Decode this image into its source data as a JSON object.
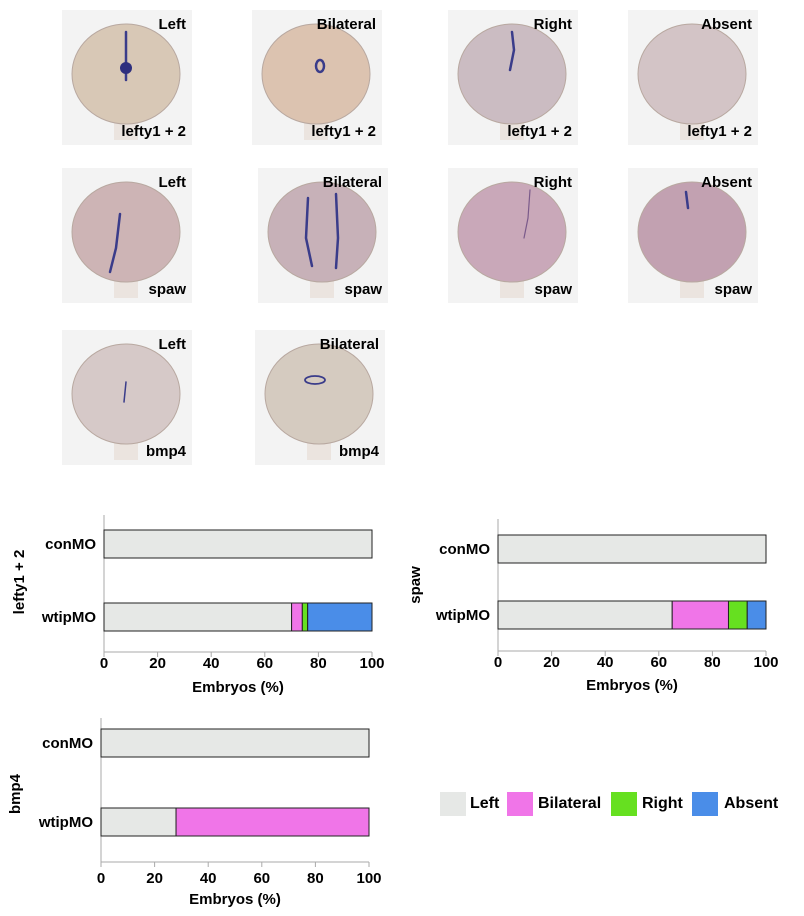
{
  "panels": [
    {
      "label": "Left",
      "marker": "lefty1 + 2",
      "stain": "center"
    },
    {
      "label": "Bilateral",
      "marker": "lefty1 + 2",
      "stain": "small"
    },
    {
      "label": "Right",
      "marker": "lefty1 + 2",
      "stain": "right"
    },
    {
      "label": "Absent",
      "marker": "lefty1 + 2",
      "stain": "none"
    },
    {
      "label": "Left",
      "marker": "spaw",
      "stain": "left-line"
    },
    {
      "label": "Bilateral",
      "marker": "spaw",
      "stain": "two-lines"
    },
    {
      "label": "Right",
      "marker": "spaw",
      "stain": "right-line"
    },
    {
      "label": "Absent",
      "marker": "spaw",
      "stain": "top"
    },
    {
      "label": "Left",
      "marker": "bmp4",
      "stain": "faint"
    },
    {
      "label": "Bilateral",
      "marker": "bmp4",
      "stain": "loop"
    }
  ],
  "colors": {
    "Left": "#e6e8e6",
    "Bilateral": "#f075e8",
    "Right": "#66e020",
    "Absent": "#4a8de8"
  },
  "chart_data": [
    {
      "type": "bar",
      "orientation": "horizontal",
      "stacked": true,
      "ylabel": "lefty1 + 2",
      "xlabel": "Embryos (%)",
      "xlim": [
        0,
        100
      ],
      "xticks": [
        0,
        20,
        40,
        60,
        80,
        100
      ],
      "categories": [
        "conMO",
        "wtipMO"
      ],
      "series": [
        {
          "name": "Left",
          "values": [
            100,
            70
          ]
        },
        {
          "name": "Bilateral",
          "values": [
            0,
            4
          ]
        },
        {
          "name": "Right",
          "values": [
            0,
            2
          ]
        },
        {
          "name": "Absent",
          "values": [
            0,
            24
          ]
        }
      ]
    },
    {
      "type": "bar",
      "orientation": "horizontal",
      "stacked": true,
      "ylabel": "spaw",
      "xlabel": "Embryos (%)",
      "xlim": [
        0,
        100
      ],
      "xticks": [
        0,
        20,
        40,
        60,
        80,
        100
      ],
      "categories": [
        "conMO",
        "wtipMO"
      ],
      "series": [
        {
          "name": "Left",
          "values": [
            100,
            65
          ]
        },
        {
          "name": "Bilateral",
          "values": [
            0,
            21
          ]
        },
        {
          "name": "Right",
          "values": [
            0,
            7
          ]
        },
        {
          "name": "Absent",
          "values": [
            0,
            7
          ]
        }
      ]
    },
    {
      "type": "bar",
      "orientation": "horizontal",
      "stacked": true,
      "ylabel": "bmp4",
      "xlabel": "Embryos (%)",
      "xlim": [
        0,
        100
      ],
      "xticks": [
        0,
        20,
        40,
        60,
        80,
        100
      ],
      "categories": [
        "conMO",
        "wtipMO"
      ],
      "series": [
        {
          "name": "Left",
          "values": [
            100,
            28
          ]
        },
        {
          "name": "Bilateral",
          "values": [
            0,
            72
          ]
        },
        {
          "name": "Right",
          "values": [
            0,
            0
          ]
        },
        {
          "name": "Absent",
          "values": [
            0,
            0
          ]
        }
      ]
    }
  ],
  "legend": [
    "Left",
    "Bilateral",
    "Right",
    "Absent"
  ]
}
